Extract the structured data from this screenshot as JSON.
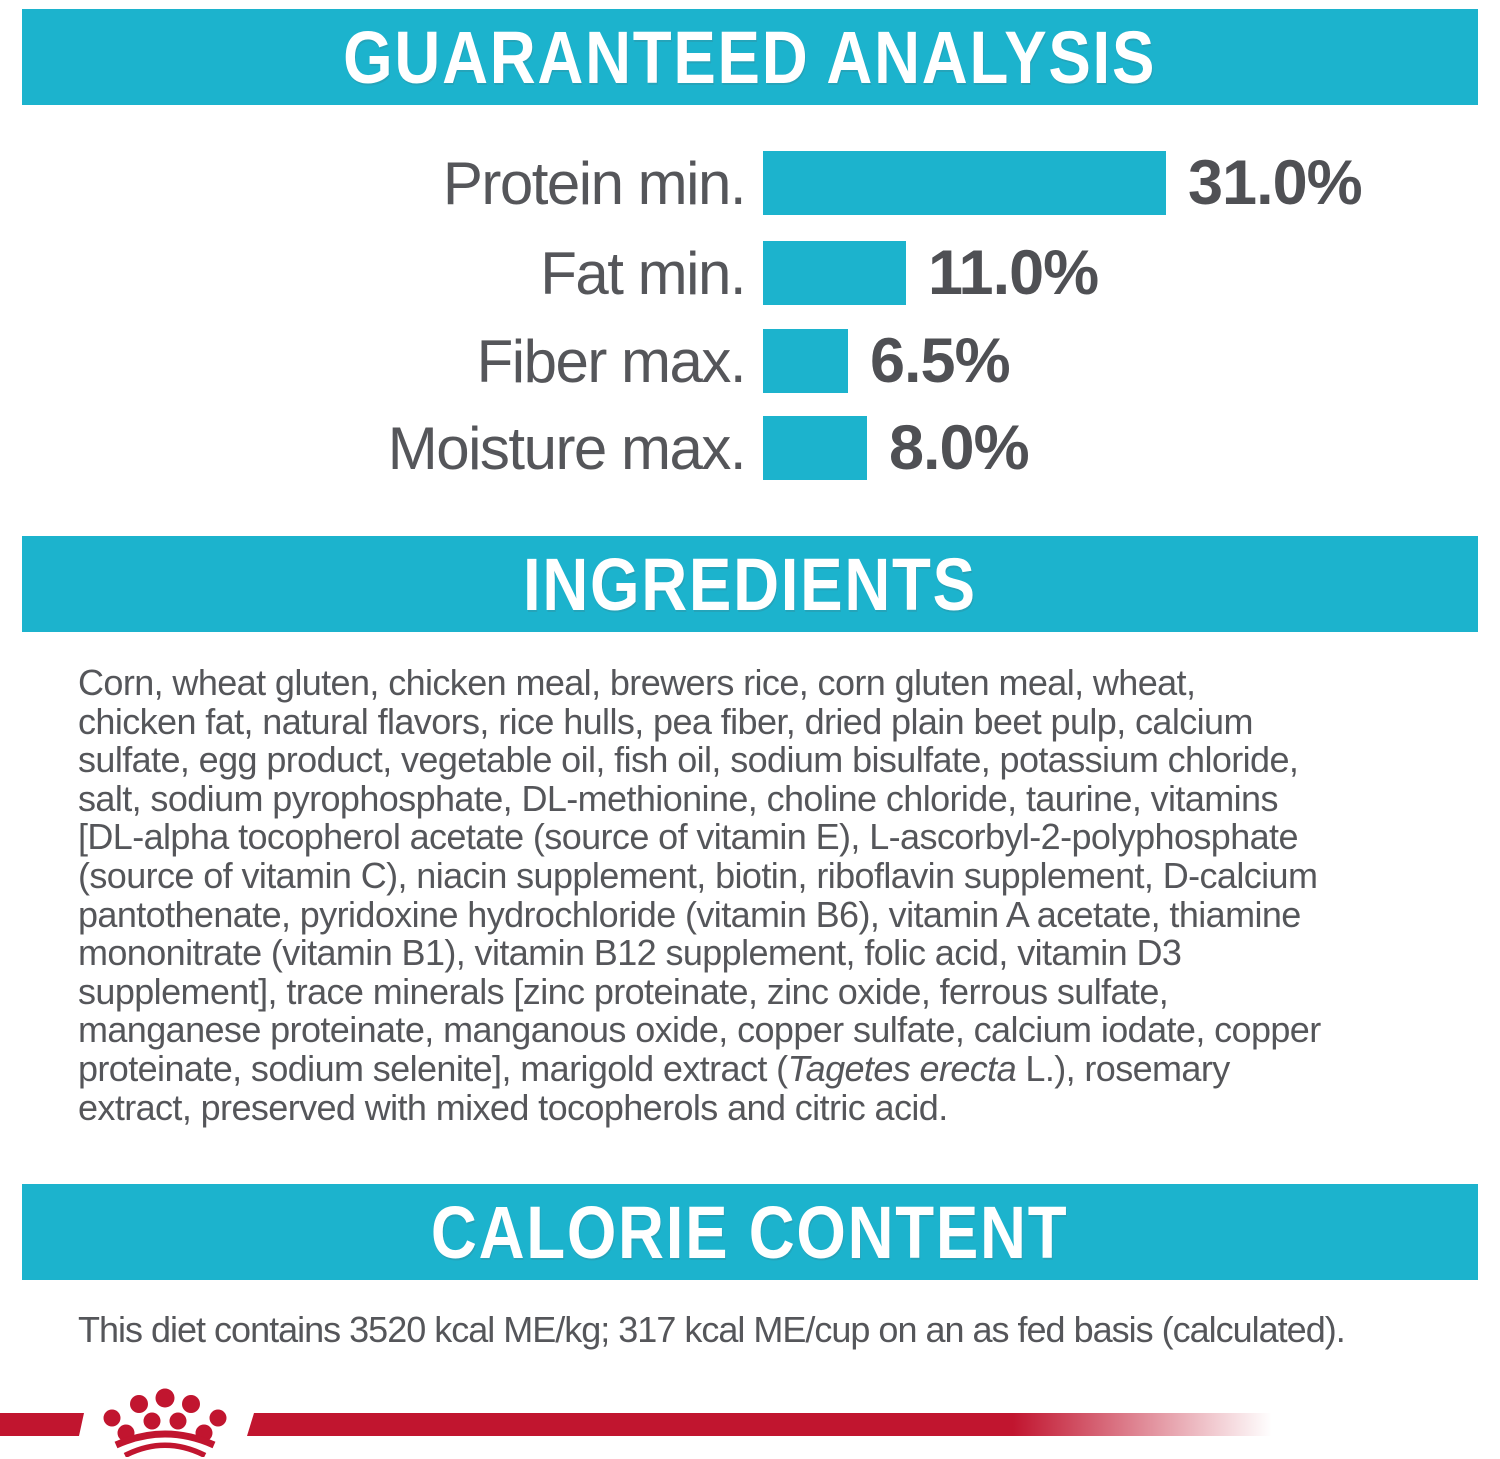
{
  "sections": {
    "guaranteed_analysis": {
      "title": "GUARANTEED ANALYSIS"
    },
    "ingredients": {
      "title": "INGREDIENTS",
      "lines": [
        "Corn, wheat gluten, chicken meal, brewers rice, corn gluten meal, wheat,",
        "chicken fat, natural flavors, rice hulls, pea fiber, dried plain beet pulp, calcium",
        "sulfate, egg product, vegetable oil, fish oil, sodium bisulfate, potassium chloride,",
        "salt, sodium pyrophosphate, DL-methionine, choline chloride, taurine, vitamins",
        "[DL-alpha tocopherol acetate (source of vitamin E), L-ascorbyl-2-polyphosphate",
        "(source of vitamin C), niacin supplement, biotin, riboflavin supplement, D-calcium",
        "pantothenate, pyridoxine hydrochloride (vitamin B6), vitamin A acetate, thiamine",
        "mononitrate (vitamin B1), vitamin B12 supplement, folic acid, vitamin D3",
        "supplement], trace minerals [zinc proteinate, zinc oxide, ferrous sulfate,",
        "manganese proteinate, manganous oxide, copper sulfate, calcium iodate, copper"
      ],
      "species_line": {
        "pre": "proteinate, sodium selenite], marigold extract (",
        "italic": "Tagetes erecta",
        "post": " L.), rosemary"
      },
      "last_line": "extract, preserved with mixed tocopherols and citric acid."
    },
    "calorie_content": {
      "title": "CALORIE CONTENT",
      "text": "This diet contains 3520 kcal ME/kg; 317 kcal ME/cup on an as fed basis (calculated)."
    }
  },
  "chart_data": {
    "type": "bar",
    "orientation": "horizontal",
    "categories": [
      "Protein min.",
      "Fat min.",
      "Fiber max.",
      "Moisture max."
    ],
    "values": [
      31.0,
      11.0,
      6.5,
      8.0
    ],
    "value_labels": [
      "31.0%",
      "11.0%",
      "6.5%",
      "8.0%"
    ],
    "bar_color": "#1cb3cd",
    "xlim": [
      0,
      31
    ],
    "grid": false,
    "legend": false
  },
  "colors": {
    "teal": "#1cb3cd",
    "brand_red": "#c1152f",
    "text_gray": "#55565a",
    "header_text": "#ffffff"
  },
  "logo": {
    "icon": "royal-canin-crown-icon",
    "color": "#c1152f"
  }
}
